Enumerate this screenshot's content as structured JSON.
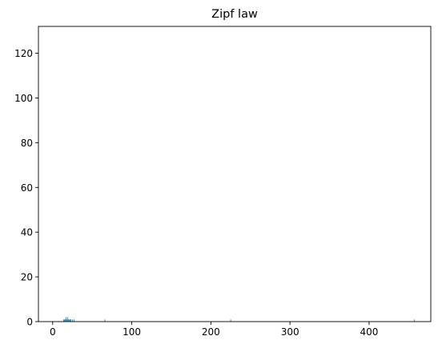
{
  "chart_data": {
    "type": "bar",
    "title": "Zipf law",
    "xlabel": "",
    "ylabel": "",
    "xlim": [
      -18,
      478
    ],
    "ylim": [
      0,
      132
    ],
    "xticks": [
      0,
      100,
      200,
      300,
      400
    ],
    "yticks": [
      0,
      20,
      40,
      60,
      80,
      100,
      120
    ],
    "bar_color": "#1f77b4",
    "grid": false,
    "legend": "none",
    "x": [
      14,
      15,
      16,
      17,
      18,
      19,
      20,
      21,
      22,
      23,
      25,
      27,
      66,
      225,
      457
    ],
    "values": [
      1,
      1,
      1,
      2,
      1,
      2,
      1,
      1,
      1,
      1,
      1,
      1,
      1,
      1,
      1
    ]
  }
}
